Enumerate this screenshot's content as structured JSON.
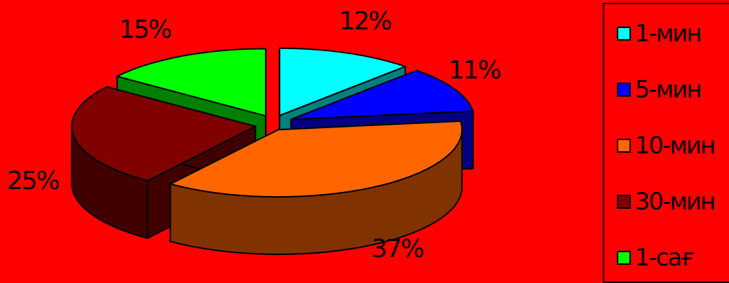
{
  "chart_data": {
    "type": "pie",
    "title": "",
    "labels": [
      "1-мин",
      "5-мин",
      "10-мин",
      "30-мин",
      "1-сағ"
    ],
    "values": [
      12,
      11,
      37,
      25,
      15
    ],
    "value_labels": [
      "12%",
      "11%",
      "37%",
      "25%",
      "15%"
    ],
    "colors": [
      "#00ffff",
      "#0000ff",
      "#ff6600",
      "#800000",
      "#00ff00"
    ],
    "style": "3d-exploded",
    "legend_position": "right",
    "background": "#ff0000"
  }
}
